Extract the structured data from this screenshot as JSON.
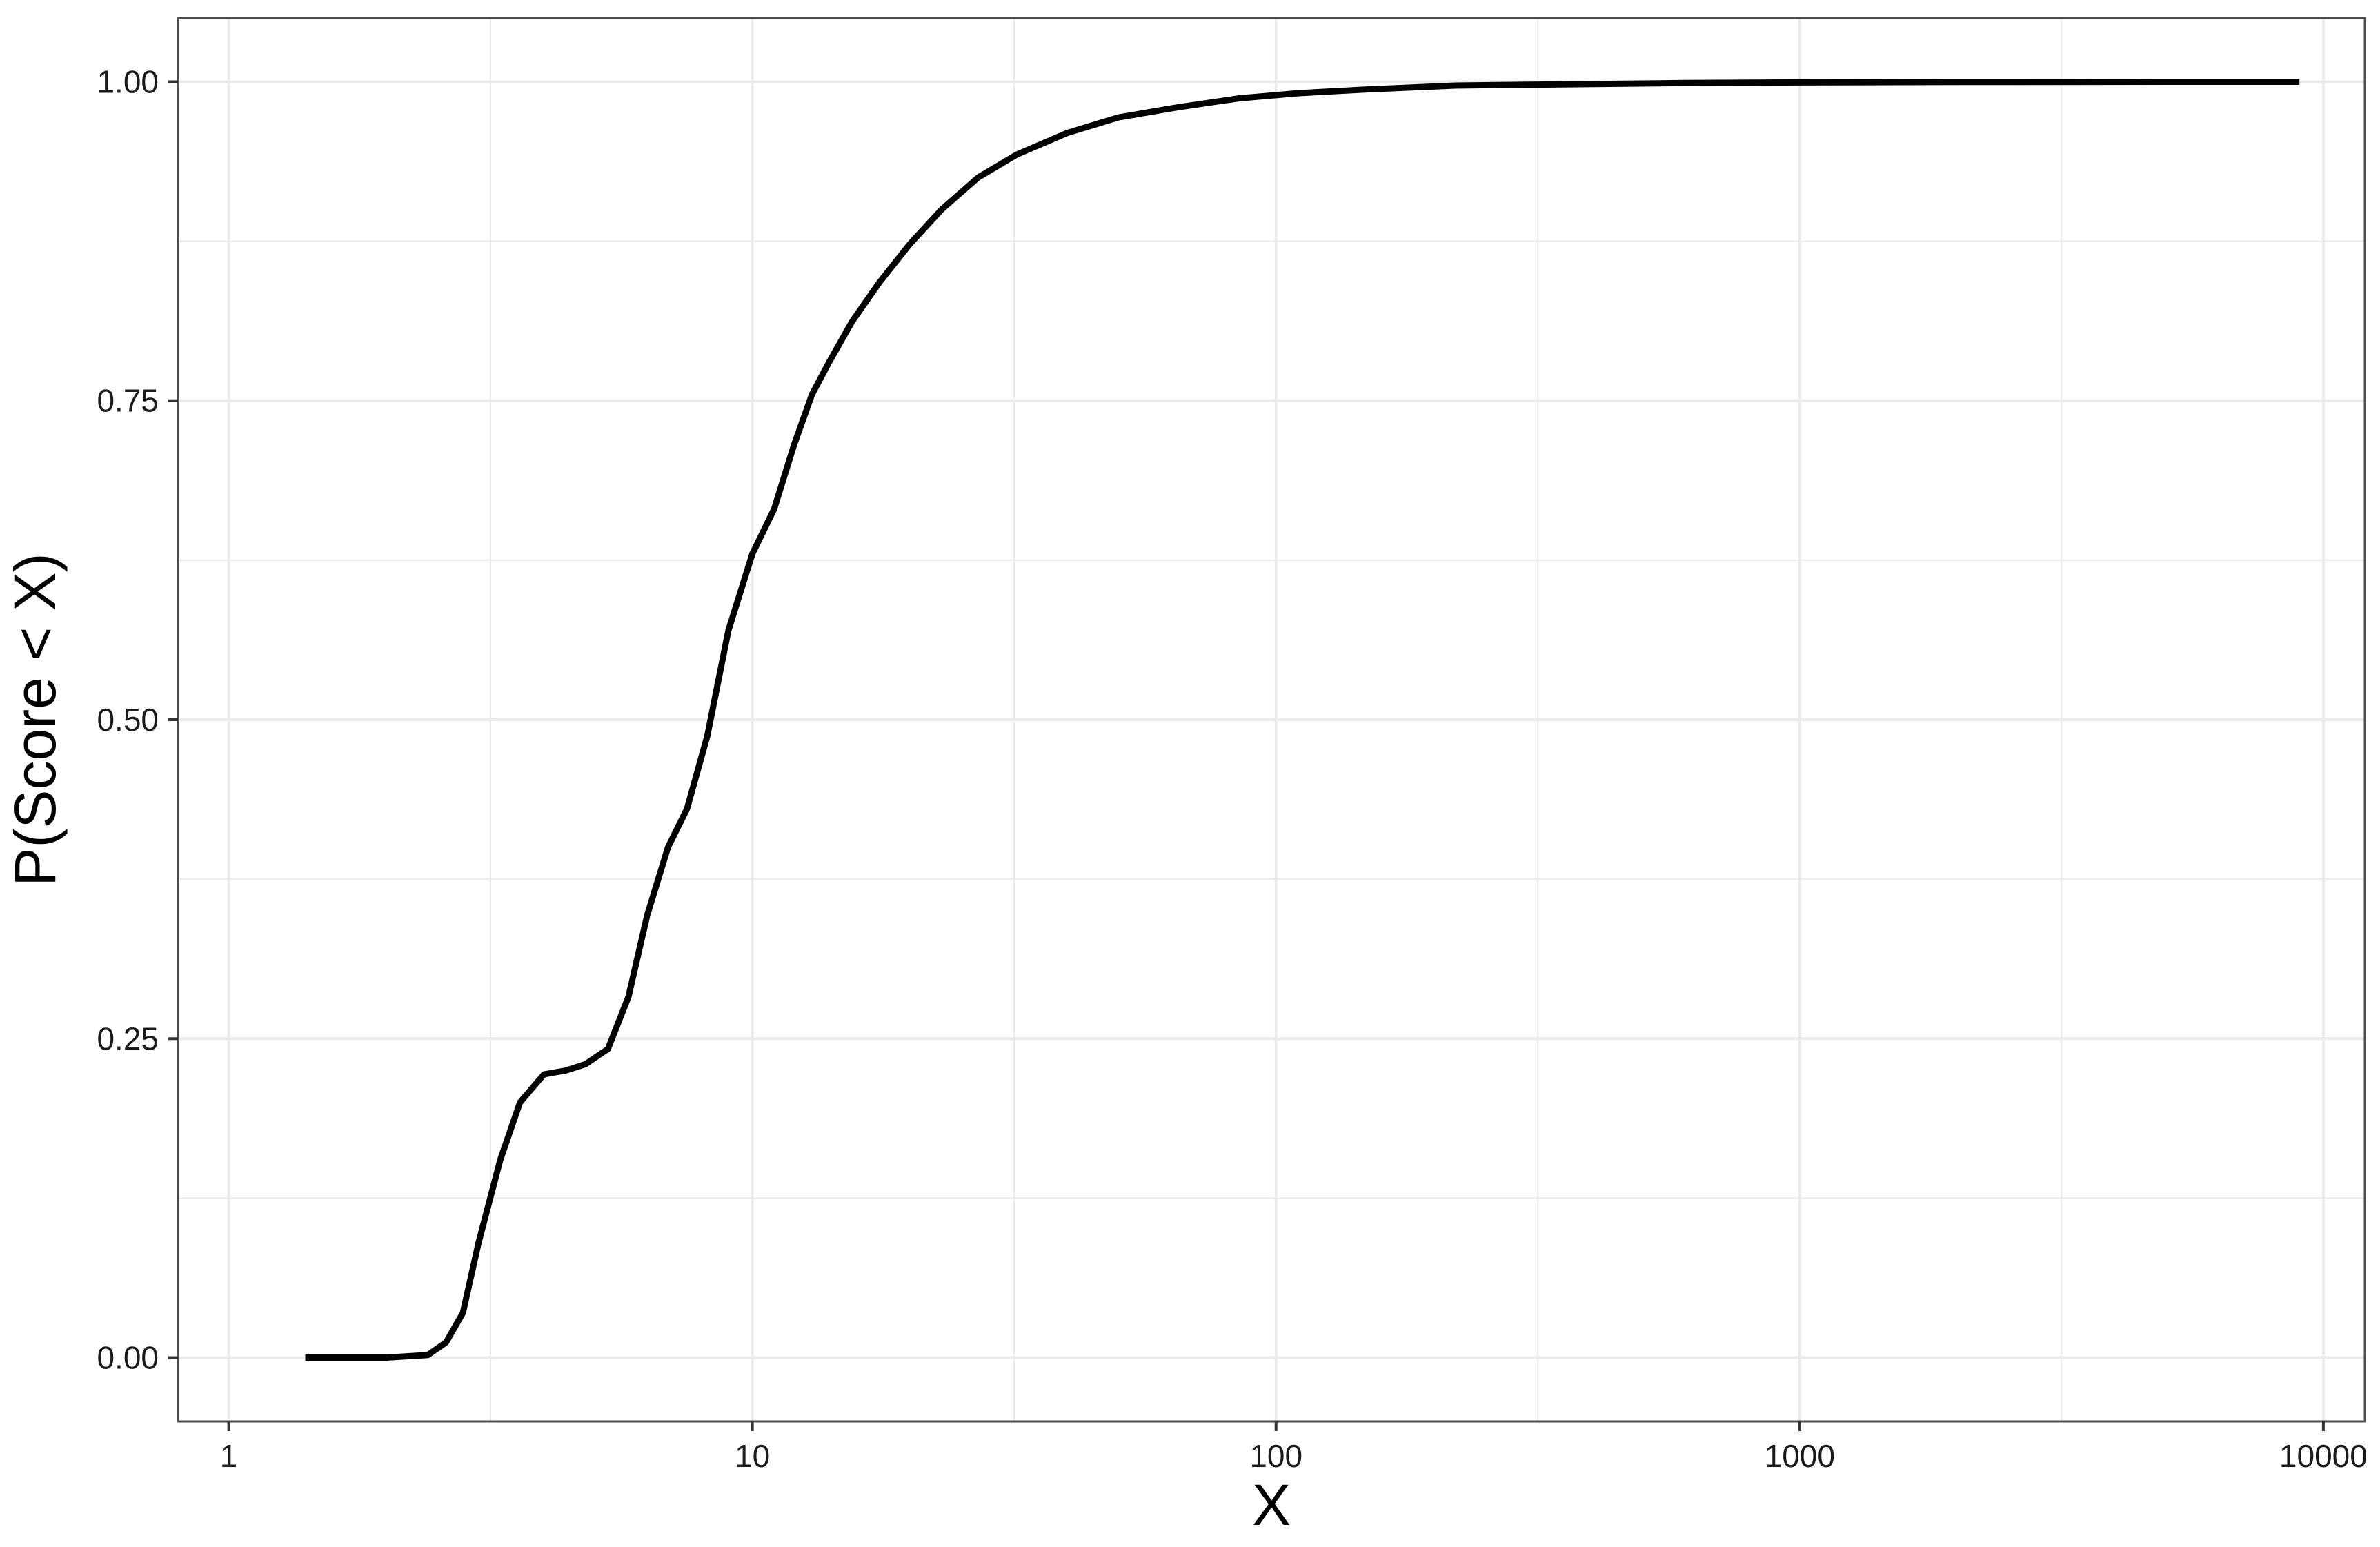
{
  "chart_data": {
    "type": "line",
    "title": "",
    "xlabel": "X",
    "ylabel": "P(Score < X)",
    "x_scale": "log10",
    "xlim": [
      0.8,
      12000
    ],
    "ylim": [
      -0.05,
      1.05
    ],
    "x_ticks": [
      1,
      10,
      100,
      1000,
      10000
    ],
    "x_tick_labels": [
      "1",
      "10",
      "100",
      "1000",
      "10000"
    ],
    "y_ticks": [
      0,
      0.25,
      0.5,
      0.75,
      1
    ],
    "y_tick_labels": [
      "0.00",
      "0.25",
      "0.50",
      "0.75",
      "1.00"
    ],
    "grid": true,
    "legend": "none",
    "colors": {
      "line": "#000000",
      "grid": "#ebebeb",
      "panel_border": "#4d4d4d",
      "background": "#ffffff"
    },
    "series": [
      {
        "x": [
          1.4,
          1.7,
          2.0,
          2.4,
          2.6,
          2.8,
          3.0,
          3.3,
          3.6,
          4.0,
          4.4,
          4.8,
          5.3,
          5.8,
          6.3,
          6.9,
          7.5,
          8.2,
          9.0,
          10.0,
          11.0,
          12.0,
          13.0,
          14.0,
          15.5,
          17.5,
          20.0,
          23.0,
          27.0,
          32.0,
          40.0,
          50.0,
          65.0,
          85.0,
          110.0,
          150.0,
          220.0,
          350.0,
          600.0,
          1000.0,
          2000.0,
          5000.0,
          9000.0
        ],
        "y": [
          0.0,
          0.0,
          0.0,
          0.002,
          0.012,
          0.035,
          0.09,
          0.155,
          0.2,
          0.222,
          0.225,
          0.23,
          0.242,
          0.283,
          0.347,
          0.4,
          0.43,
          0.487,
          0.57,
          0.63,
          0.665,
          0.715,
          0.755,
          0.78,
          0.812,
          0.843,
          0.873,
          0.9,
          0.925,
          0.943,
          0.96,
          0.972,
          0.98,
          0.987,
          0.991,
          0.994,
          0.997,
          0.998,
          0.999,
          0.9995,
          0.9998,
          1.0,
          1.0
        ]
      }
    ]
  }
}
